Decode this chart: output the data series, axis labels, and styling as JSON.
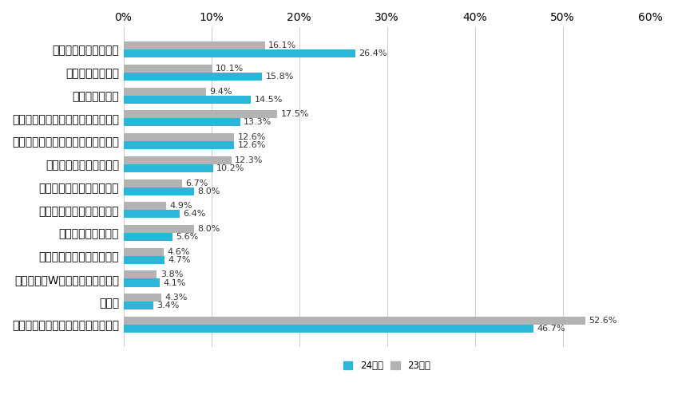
{
  "categories": [
    "サークル活動について",
    "海外留学について",
    "部活動について",
    "学業・研究活動・ゼミ活動について",
    "学生時代に打ち込んだことについて",
    "アルバイト経験について",
    "ボランティア活動について",
    "インターンシップについて",
    "趣味・特技について",
    "最近感動したことについて",
    "資格取得（Wスクール）について",
    "その他",
    "特に答えようがなかったことはない"
  ],
  "values_24": [
    26.4,
    15.8,
    14.5,
    13.3,
    12.6,
    10.2,
    8.0,
    6.4,
    5.6,
    4.7,
    4.1,
    3.4,
    46.7
  ],
  "values_23": [
    16.1,
    10.1,
    9.4,
    17.5,
    12.6,
    12.3,
    6.7,
    4.9,
    8.0,
    4.6,
    3.8,
    4.3,
    52.6
  ],
  "color_24": "#29b6d8",
  "color_23": "#b3b3b3",
  "xlim": [
    0,
    60
  ],
  "xticks": [
    0,
    10,
    20,
    30,
    40,
    50,
    60
  ],
  "xtick_labels": [
    "0%",
    "10%",
    "20%",
    "30%",
    "40%",
    "50%",
    "60%"
  ],
  "legend_24": "24年卒",
  "legend_23": "23年卒",
  "bar_height": 0.35,
  "label_fontsize": 8.0,
  "tick_fontsize": 8.5,
  "axis_fontsize": 9,
  "bg_color": "#ffffff",
  "grid_color": "#cccccc"
}
